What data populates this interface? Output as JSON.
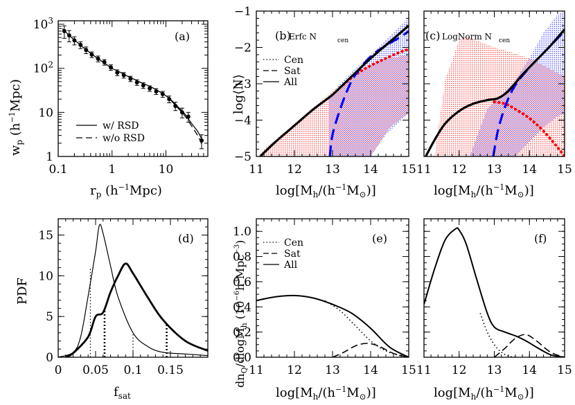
{
  "colors": {
    "axes": "#000000",
    "blue": "#0000ff",
    "red": "#ff0000",
    "blue_shade": "#9a9aff",
    "red_shade": "#ff9a9a"
  },
  "chart_data": [
    {
      "id": "a",
      "type": "scatter",
      "panel_label": "(a)",
      "xlabel": "r_p (h^{-1}Mpc)",
      "ylabel": "w_p (h^{-1}Mpc)",
      "xscale": "log",
      "yscale": "log",
      "xlim": [
        0.1,
        60
      ],
      "ylim": [
        1,
        1200
      ],
      "xtick_labels": [
        "0.1",
        "1",
        "10"
      ],
      "ytick_labels": [
        "1",
        "10",
        "10^2",
        "10^3"
      ],
      "legend": {
        "position": "bottom-left",
        "entries": [
          "w/ RSD",
          "w/o RSD"
        ]
      },
      "series": [
        {
          "name": "w/ RSD",
          "style": "solid",
          "x": [
            0.12,
            0.16,
            0.22,
            0.3,
            0.4,
            0.55,
            0.75,
            1.0,
            1.4,
            1.9,
            2.6,
            3.5,
            4.8,
            6.5,
            9,
            12,
            16,
            22,
            30,
            40,
            48
          ],
          "y": [
            800,
            560,
            400,
            290,
            220,
            165,
            128,
            100,
            82,
            67,
            56,
            47,
            40,
            33,
            26,
            20,
            14,
            9.5,
            5.6,
            3.5,
            2.2
          ]
        },
        {
          "name": "w/o RSD",
          "style": "dashed",
          "x": [
            12,
            16,
            22,
            30,
            40,
            48
          ],
          "y": [
            19.5,
            13.3,
            8.6,
            4.9,
            2.8,
            1.7
          ]
        },
        {
          "name": "data",
          "style": "points",
          "x": [
            0.13,
            0.16,
            0.2,
            0.26,
            0.33,
            0.42,
            0.55,
            0.72,
            0.95,
            1.25,
            1.65,
            2.2,
            2.9,
            3.8,
            5,
            6.6,
            8.7,
            11.5,
            15,
            20,
            26,
            46
          ],
          "y": [
            700,
            560,
            430,
            340,
            260,
            205,
            165,
            138,
            105,
            80,
            70,
            58,
            48,
            41,
            35,
            30,
            26,
            20,
            14,
            10,
            8,
            2.3
          ],
          "err": [
            220,
            160,
            90,
            60,
            45,
            30,
            25,
            20,
            15,
            12,
            10,
            8,
            7,
            6,
            5,
            4.5,
            4,
            3.5,
            3,
            2.5,
            2,
            0.8
          ]
        }
      ]
    },
    {
      "id": "b",
      "type": "line",
      "panel_label": "(b)",
      "title": "Erfc N",
      "title_sub": "cen",
      "xlabel": "log[M_h/(h^{-1}M_⊙)]",
      "ylabel": "log⟨N⟩",
      "xlim": [
        11,
        15
      ],
      "ylim": [
        -5,
        -1
      ],
      "xtick_labels": [
        "11",
        "12",
        "13",
        "14",
        "15"
      ],
      "ytick_labels": [
        "−5",
        "−4",
        "−3",
        "−2",
        "−1"
      ],
      "legend": {
        "position": "left",
        "entries": [
          "Cen",
          "Sat",
          "All"
        ]
      },
      "series": [
        {
          "name": "Cen",
          "color": "red",
          "style": "dotted",
          "x": [
            13.2,
            13.6,
            14.0,
            14.4,
            14.8,
            15
          ],
          "y": [
            -3.1,
            -2.75,
            -2.5,
            -2.3,
            -2.12,
            -2.05
          ]
        },
        {
          "name": "Sat",
          "color": "blue",
          "style": "dashed",
          "x": [
            12.93,
            13.0,
            13.2,
            13.4,
            13.6,
            14.0,
            14.4,
            14.8,
            15
          ],
          "y": [
            -5,
            -4.4,
            -3.7,
            -3.15,
            -2.75,
            -2.25,
            -1.95,
            -1.7,
            -1.55
          ]
        },
        {
          "name": "All",
          "color": "black",
          "style": "solid",
          "x": [
            11.1,
            11.5,
            12,
            12.5,
            13,
            13.5,
            14,
            14.5,
            15
          ],
          "y": [
            -5,
            -4.6,
            -4.15,
            -3.7,
            -3.3,
            -2.8,
            -2.3,
            -1.85,
            -1.4
          ]
        }
      ],
      "bands": [
        {
          "color": "red",
          "x": [
            11.1,
            12,
            13,
            13.5,
            14,
            14.5,
            15
          ],
          "y_low": [
            -5,
            -5,
            -5,
            -5,
            -5,
            -4.2,
            -3.8
          ],
          "y_high": [
            -4.9,
            -4.1,
            -3.2,
            -2.85,
            -2.5,
            -2.3,
            -2.2
          ]
        },
        {
          "color": "blue",
          "x": [
            12.9,
            13.2,
            13.6,
            14,
            14.4,
            14.8,
            15
          ],
          "y_low": [
            -5,
            -5,
            -5,
            -5,
            -4.4,
            -4.0,
            -3.8
          ],
          "y_high": [
            -3.4,
            -3.0,
            -2.6,
            -2.2,
            -1.8,
            -1.4,
            -1.2
          ]
        }
      ]
    },
    {
      "id": "c",
      "type": "line",
      "panel_label": "(c)",
      "title": "LogNorm N",
      "title_sub": "cen",
      "xlabel": "log[M_h/(h^{-1}M_⊙)]",
      "xlim": [
        11,
        15
      ],
      "ylim": [
        -5,
        -1
      ],
      "xtick_labels": [
        "11",
        "12",
        "13",
        "14",
        "15"
      ],
      "series": [
        {
          "name": "Cen",
          "color": "red",
          "style": "dotted",
          "x": [
            13.0,
            13.3,
            13.6,
            14.0,
            14.4,
            14.8,
            15.0
          ],
          "y": [
            -3.5,
            -3.55,
            -3.7,
            -3.95,
            -4.3,
            -4.75,
            -5.0
          ]
        },
        {
          "name": "Sat",
          "color": "blue",
          "style": "dashed",
          "x": [
            12.97,
            13.1,
            13.3,
            13.5,
            13.7,
            14.0,
            14.5,
            15
          ],
          "y": [
            -5,
            -4.3,
            -3.65,
            -3.2,
            -2.9,
            -2.55,
            -2.05,
            -1.55
          ]
        },
        {
          "name": "All",
          "color": "black",
          "style": "solid",
          "x": [
            11.05,
            11.3,
            11.6,
            12.0,
            12.4,
            12.8,
            13.1,
            13.4,
            13.8,
            14.2,
            14.6,
            15
          ],
          "y": [
            -5,
            -4.55,
            -4.1,
            -3.75,
            -3.55,
            -3.45,
            -3.4,
            -3.2,
            -2.75,
            -2.35,
            -1.95,
            -1.5
          ]
        }
      ],
      "bands": [
        {
          "color": "red",
          "x": [
            11.3,
            11.6,
            12.0,
            12.2,
            12.6,
            13.0,
            13.4,
            14.0,
            14.6,
            15.0
          ],
          "y_low": [
            -5,
            -5,
            -5,
            -5,
            -5,
            -5,
            -5,
            -5,
            -5,
            -5
          ],
          "y_high": [
            -5,
            -2.9,
            -1.8,
            -1.7,
            -1.85,
            -2.0,
            -2.1,
            -2.3,
            -2.6,
            -2.8
          ]
        },
        {
          "color": "blue",
          "x": [
            12.3,
            12.8,
            13.2,
            13.6,
            14.0,
            14.4,
            14.8,
            15.0
          ],
          "y_low": [
            -5,
            -5,
            -5,
            -5,
            -4.6,
            -4.2,
            -3.9,
            -3.8
          ],
          "y_high": [
            -5,
            -3.7,
            -3.3,
            -2.9,
            -2.3,
            -1.6,
            -1.1,
            -1.0
          ]
        }
      ]
    },
    {
      "id": "d",
      "type": "line",
      "panel_label": "(d)",
      "xlabel": "f_sat",
      "ylabel": "PDF",
      "xlim": [
        0,
        0.2
      ],
      "ylim": [
        0,
        17
      ],
      "xtick_labels": [
        "0",
        "0.05",
        "0.1",
        "0.15"
      ],
      "ytick_labels": [
        "0",
        "5",
        "10",
        "15"
      ],
      "series": [
        {
          "name": "thin",
          "style": "solid",
          "x": [
            0.0,
            0.02,
            0.03,
            0.04,
            0.05,
            0.055,
            0.06,
            0.07,
            0.08,
            0.1,
            0.12,
            0.14,
            0.17,
            0.2
          ],
          "y": [
            0,
            0.6,
            2.5,
            7.5,
            13,
            16.2,
            15.2,
            11.2,
            7.4,
            3.0,
            1.3,
            0.6,
            0.4,
            0.2
          ]
        },
        {
          "name": "thick",
          "style": "solid",
          "x": [
            0.01,
            0.02,
            0.04,
            0.05,
            0.06,
            0.07,
            0.08,
            0.09,
            0.1,
            0.12,
            0.14,
            0.17,
            0.2
          ],
          "y": [
            0,
            0.5,
            2.5,
            5,
            5.5,
            8,
            10,
            11.5,
            10.3,
            7.3,
            4.6,
            2.0,
            0.8
          ]
        }
      ],
      "vlines": [
        {
          "x": 0.043,
          "y": 11.0,
          "weight": "thin"
        },
        {
          "x": 0.1,
          "y": 3.0,
          "weight": "thin"
        },
        {
          "x": 0.062,
          "y": 5.7,
          "weight": "thick"
        },
        {
          "x": 0.145,
          "y": 4.0,
          "weight": "thick"
        }
      ]
    },
    {
      "id": "e",
      "type": "line",
      "panel_label": "(e)",
      "xlabel": "log[M_h/(h^{-1}M_⊙)]",
      "ylabel": "dn_Q/dlogM_h (10^{-6}h^3Mpc^{-3})",
      "xlim": [
        11,
        15
      ],
      "ylim": [
        0,
        1.1
      ],
      "xtick_labels": [
        "11",
        "12",
        "13",
        "14",
        "15"
      ],
      "ytick_labels": [
        "0.0",
        "0.2",
        "0.4",
        "0.6",
        "0.8",
        "1.0"
      ],
      "legend": {
        "position": "top-left",
        "entries": [
          "Cen",
          "Sat",
          "All"
        ]
      },
      "series": [
        {
          "name": "Cen",
          "style": "dotted",
          "x": [
            12.8,
            13.2,
            13.6,
            14.0,
            14.4,
            14.8
          ],
          "y": [
            0.45,
            0.37,
            0.25,
            0.13,
            0.05,
            0.01
          ]
        },
        {
          "name": "Sat",
          "style": "dashed",
          "x": [
            13.0,
            13.3,
            13.6,
            13.9,
            14.2,
            14.6,
            15
          ],
          "y": [
            0.0,
            0.04,
            0.09,
            0.11,
            0.09,
            0.03,
            0.0
          ]
        },
        {
          "name": "All",
          "style": "solid",
          "x": [
            11.0,
            11.5,
            12.0,
            12.5,
            13.0,
            13.5,
            14.0,
            14.5,
            15.0
          ],
          "y": [
            0.45,
            0.48,
            0.49,
            0.47,
            0.42,
            0.35,
            0.23,
            0.08,
            0.0
          ]
        }
      ]
    },
    {
      "id": "f",
      "type": "line",
      "panel_label": "(f)",
      "xlabel": "log[M_h/(h^{-1}M_⊙)]",
      "xlim": [
        11,
        15
      ],
      "ylim": [
        0,
        1.1
      ],
      "xtick_labels": [
        "11",
        "12",
        "13",
        "14",
        "15"
      ],
      "series": [
        {
          "name": "Cen",
          "style": "dotted",
          "x": [
            12.6,
            12.8,
            13.0,
            13.2,
            13.4,
            13.6
          ],
          "y": [
            0.35,
            0.2,
            0.1,
            0.04,
            0.01,
            0.0
          ]
        },
        {
          "name": "Sat",
          "style": "dashed",
          "x": [
            13.0,
            13.3,
            13.6,
            13.9,
            14.2,
            14.6,
            15
          ],
          "y": [
            0.0,
            0.07,
            0.15,
            0.18,
            0.13,
            0.04,
            0.0
          ]
        },
        {
          "name": "All",
          "style": "solid",
          "x": [
            11.0,
            11.3,
            11.6,
            11.9,
            12.0,
            12.2,
            12.5,
            12.8,
            13.0,
            13.3,
            13.6,
            13.9,
            14.2,
            14.6,
            15.0
          ],
          "y": [
            0.42,
            0.7,
            0.93,
            1.02,
            1.01,
            0.9,
            0.62,
            0.35,
            0.24,
            0.2,
            0.17,
            0.13,
            0.08,
            0.02,
            0.0
          ]
        }
      ]
    }
  ]
}
